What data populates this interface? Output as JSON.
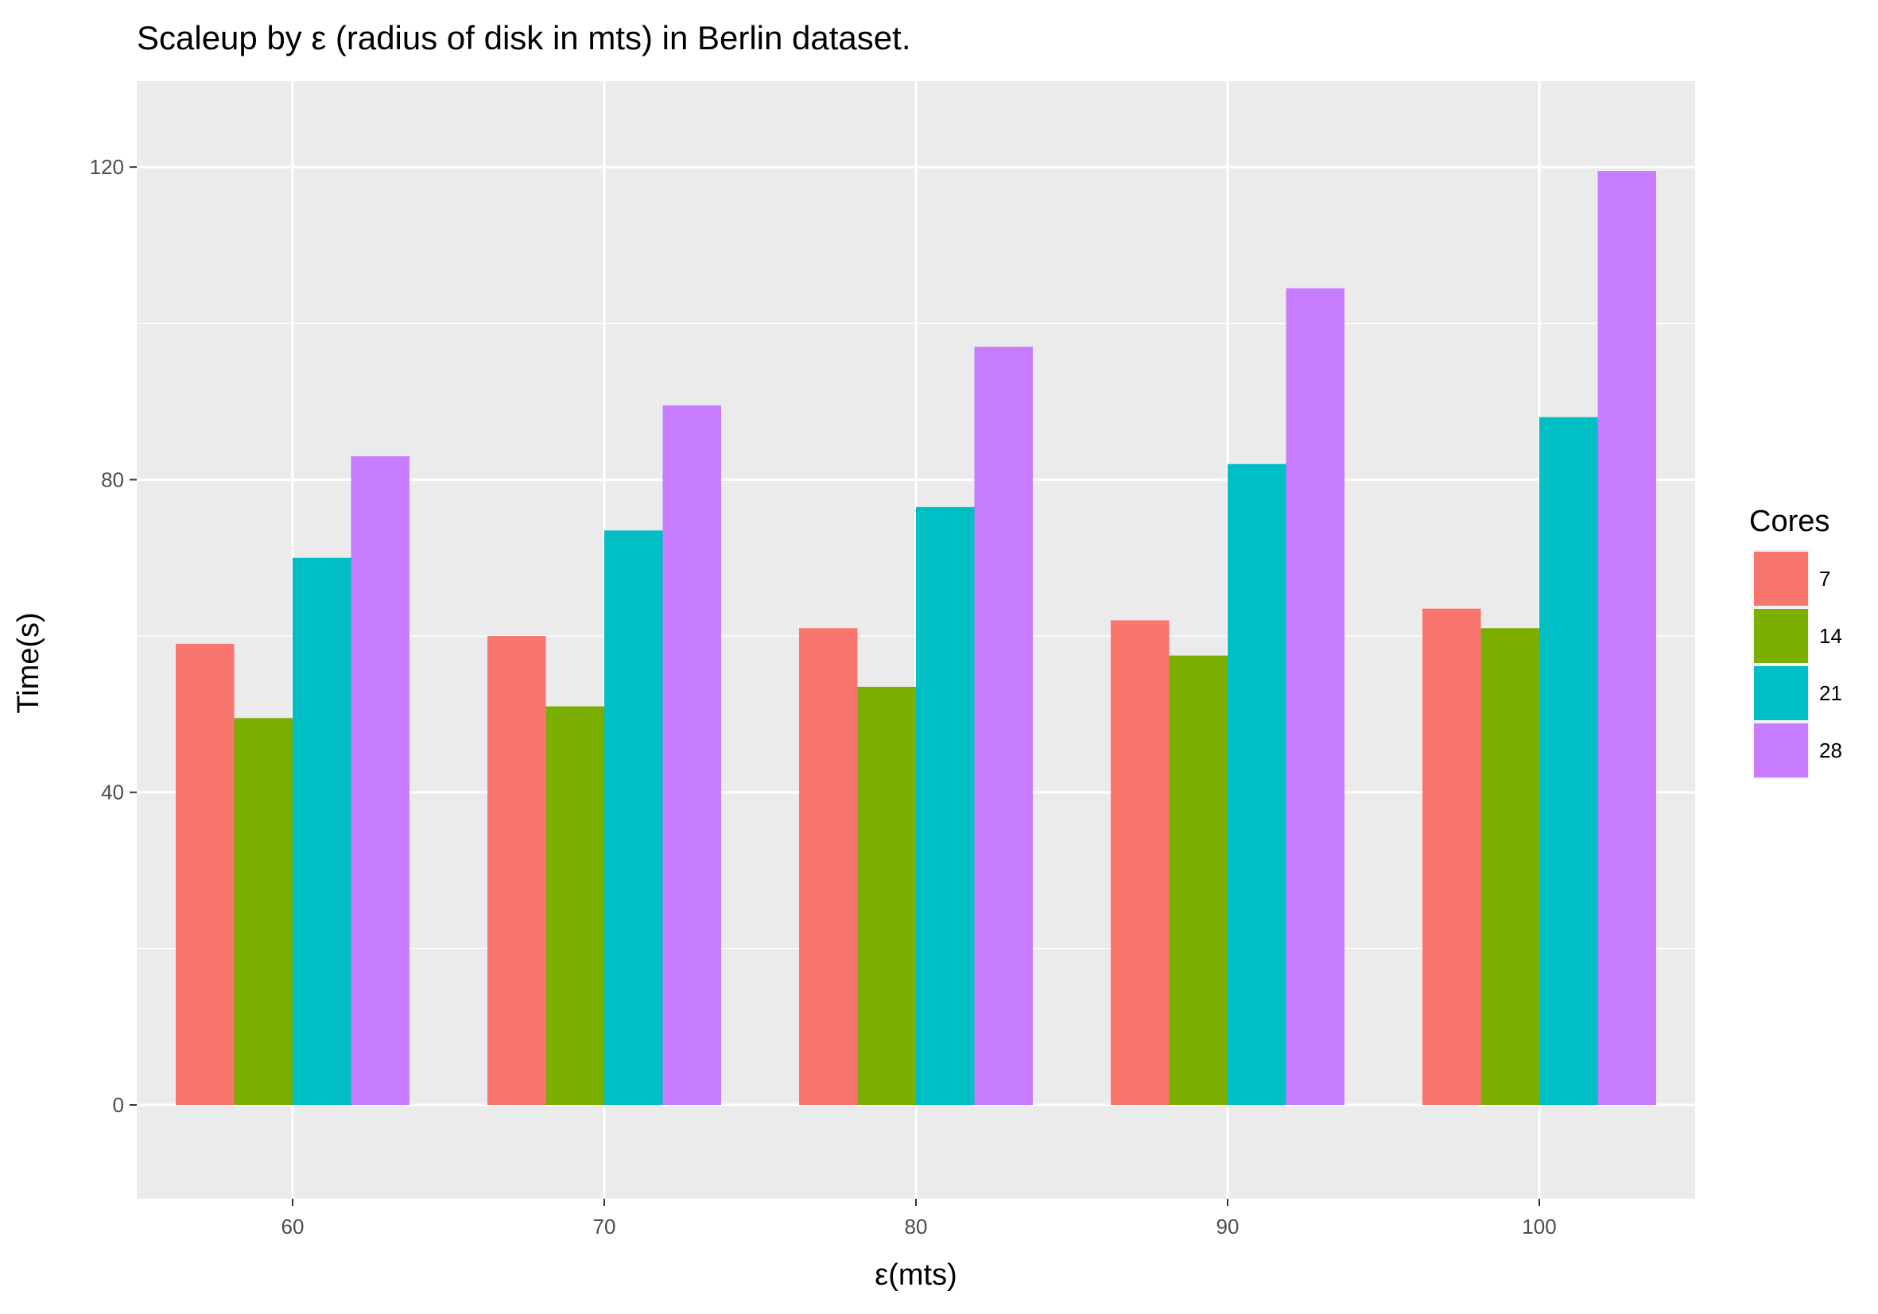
{
  "chart_data": {
    "type": "bar",
    "title": "Scaleup by ε (radius of disk in mts) in Berlin dataset.",
    "xlabel": "ε(mts)",
    "ylabel": "Time(s)",
    "categories": [
      "60",
      "70",
      "80",
      "90",
      "100"
    ],
    "ylim": [
      -12,
      131
    ],
    "yticks": [
      0,
      40,
      80,
      120
    ],
    "grid": true,
    "legend": {
      "title": "Cores",
      "position": "right"
    },
    "series": [
      {
        "name": "7",
        "color": "#F8766D",
        "values": [
          59,
          60,
          61,
          62,
          63.5
        ]
      },
      {
        "name": "14",
        "color": "#7CAE00",
        "values": [
          49.5,
          51,
          53.5,
          57.5,
          61
        ]
      },
      {
        "name": "21",
        "color": "#00BFC4",
        "values": [
          70,
          73.5,
          76.5,
          82,
          88
        ]
      },
      {
        "name": "28",
        "color": "#C77CFF",
        "values": [
          83,
          89.5,
          97,
          104.5,
          119.5
        ]
      }
    ]
  }
}
